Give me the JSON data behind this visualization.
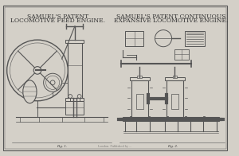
{
  "bg_color": "#d4d0c8",
  "border_color": "#555555",
  "line_color": "#555555",
  "title_left_line1": "SAMUEL'S PATENT",
  "title_left_line2": "LOCOMOTIVE FEED ENGINE.",
  "title_right_line1": "SAMUEL'S PATENT CONTINUOUS",
  "title_right_line2": "EXPANSIVE LOCOMOTIVE ENGINE.",
  "text_color": "#333333",
  "title_fontsize": 5.5,
  "annotation_fontsize": 3.5,
  "fig_width": 3.0,
  "fig_height": 1.96,
  "dpi": 100
}
